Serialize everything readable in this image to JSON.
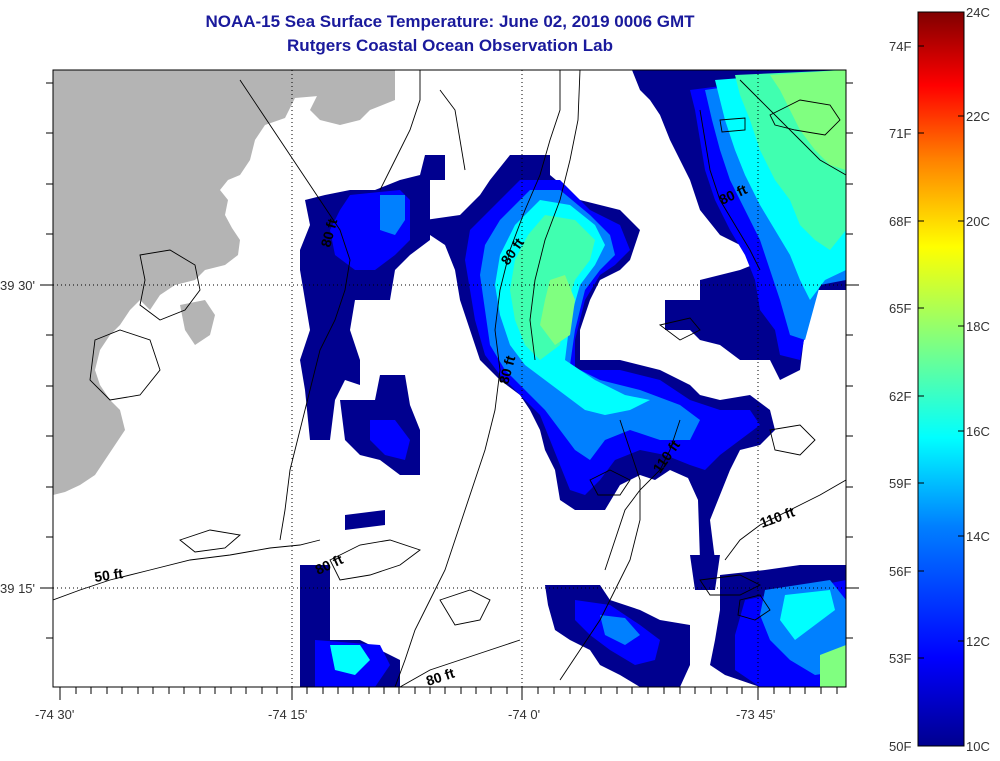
{
  "header": {
    "title": "NOAA-15 Sea Surface Temperature:  June 02, 2019 0006 GMT",
    "subtitle": "Rutgers Coastal Ocean Observation Lab"
  },
  "map": {
    "lon_labels": [
      "-74 30'",
      "-74 15'",
      "-74 0'",
      "-73 45'"
    ],
    "lat_labels": [
      "39 30'",
      "39 15'"
    ],
    "contour_labels": [
      "50 ft",
      "80 ft",
      "80 ft",
      "80 ft",
      "80 ft",
      "110 ft",
      "110 ft",
      "50 ft",
      "80 ft",
      "80 ft"
    ],
    "colors": {
      "land": "#b4b4b4",
      "nodata": "#ffffff",
      "contour": "#000000",
      "grid": "#000000"
    }
  },
  "colorbar": {
    "celsius_labels": [
      "24C",
      "22C",
      "20C",
      "18C",
      "16C",
      "14C",
      "12C",
      "10C"
    ],
    "fahrenheit_labels": [
      "74F",
      "71F",
      "68F",
      "65F",
      "62F",
      "59F",
      "56F",
      "53F",
      "50F"
    ],
    "range_c": [
      10,
      24
    ],
    "palette": [
      "#00008f",
      "#0000ff",
      "#0080ff",
      "#00ffff",
      "#80ff80",
      "#ffff00",
      "#ff8000",
      "#ff0000",
      "#800000"
    ]
  }
}
